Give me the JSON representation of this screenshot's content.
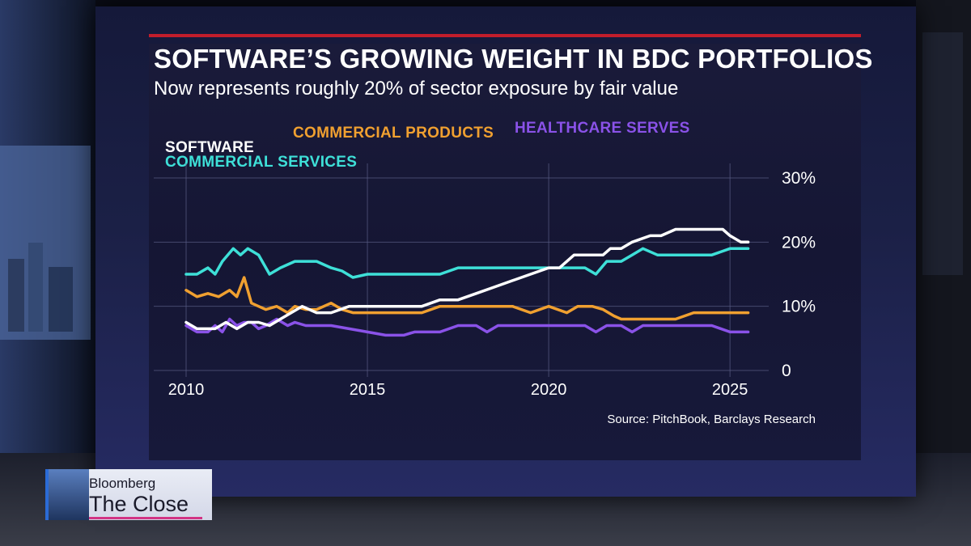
{
  "chart_data": {
    "type": "line",
    "title": "SOFTWARE’S GROWING WEIGHT IN BDC PORTFOLIOS",
    "subtitle": "Now represents roughly 20% of sector exposure by fair value",
    "x_ticks": [
      "2010",
      "2015",
      "2020",
      "2025"
    ],
    "y_ticks": [
      "30%",
      "20%",
      "10%",
      "0"
    ],
    "xlim": [
      2010,
      2025.8
    ],
    "ylim": [
      0,
      30
    ],
    "legend_placement": "top",
    "source": "Source: PitchBook, Barclays Research",
    "series": [
      {
        "name": "SOFTWARE",
        "color": "#ffffff",
        "x": [
          2010.0,
          2010.3,
          2010.8,
          2011.1,
          2011.4,
          2011.7,
          2012.0,
          2012.3,
          2012.6,
          2012.9,
          2013.2,
          2013.6,
          2014.0,
          2014.5,
          2015.0,
          2015.5,
          2016.0,
          2016.5,
          2017.0,
          2017.5,
          2018.0,
          2018.5,
          2019.0,
          2019.5,
          2020.0,
          2020.3,
          2020.7,
          2021.0,
          2021.5,
          2021.7,
          2022.0,
          2022.3,
          2022.8,
          2023.1,
          2023.5,
          2024.0,
          2024.5,
          2024.8,
          2025.0,
          2025.3,
          2025.5
        ],
        "values": [
          7.5,
          6.5,
          6.5,
          7.5,
          6.5,
          7.5,
          7.5,
          7,
          8,
          9,
          10,
          9,
          9,
          10,
          10,
          10,
          10,
          10,
          11,
          11,
          12,
          13,
          14,
          15,
          16,
          16,
          18,
          18,
          18,
          19,
          19,
          20,
          21,
          21,
          22,
          22,
          22,
          22,
          21,
          20,
          20
        ]
      },
      {
        "name": "COMMERCIAL PRODUCTS",
        "color": "#f0a030",
        "x": [
          2010.0,
          2010.3,
          2010.6,
          2010.9,
          2011.2,
          2011.4,
          2011.6,
          2011.8,
          2012.0,
          2012.2,
          2012.5,
          2012.8,
          2013.0,
          2013.3,
          2013.6,
          2014.0,
          2014.3,
          2014.6,
          2015.0,
          2016.0,
          2016.5,
          2017.0,
          2017.5,
          2018.0,
          2019.0,
          2019.5,
          2020.0,
          2020.5,
          2020.8,
          2021.2,
          2021.5,
          2021.8,
          2022.0,
          2022.3,
          2022.6,
          2023.0,
          2023.5,
          2024.0,
          2025.0,
          2025.5
        ],
        "values": [
          12.5,
          11.5,
          12,
          11.5,
          12.5,
          11.5,
          14.5,
          10.5,
          10,
          9.5,
          10,
          9,
          10,
          9.5,
          9.5,
          10.5,
          9.5,
          9,
          9,
          9,
          9,
          10,
          10,
          10,
          10,
          9,
          10,
          9,
          10,
          10,
          9.5,
          8.5,
          8,
          8,
          8,
          8,
          8,
          9,
          9,
          9
        ]
      },
      {
        "name": "HEALTHCARE SERVES",
        "color": "#8a52e8",
        "x": [
          2010.0,
          2010.3,
          2010.6,
          2010.8,
          2011.0,
          2011.2,
          2011.4,
          2011.6,
          2011.8,
          2012.0,
          2012.2,
          2012.5,
          2012.8,
          2013.0,
          2013.3,
          2014.0,
          2015.0,
          2015.5,
          2016.0,
          2016.3,
          2016.6,
          2017.0,
          2017.5,
          2018.0,
          2018.3,
          2018.6,
          2019.0,
          2020.0,
          2020.5,
          2021.0,
          2021.3,
          2021.6,
          2022.0,
          2022.3,
          2022.6,
          2023.0,
          2024.0,
          2024.5,
          2025.0,
          2025.5
        ],
        "values": [
          7,
          6,
          6,
          7,
          6,
          8,
          7,
          7.5,
          7.5,
          6.5,
          7,
          8,
          7,
          7.5,
          7,
          7,
          6,
          5.5,
          5.5,
          6,
          6,
          6,
          7,
          7,
          6,
          7,
          7,
          7,
          7,
          7,
          6,
          7,
          7,
          6,
          7,
          7,
          7,
          7,
          6,
          6
        ]
      },
      {
        "name": "COMMERCIAL SERVICES",
        "color": "#3ee0d8",
        "x": [
          2010.0,
          2010.3,
          2010.6,
          2010.8,
          2011.0,
          2011.3,
          2011.5,
          2011.7,
          2012.0,
          2012.3,
          2012.6,
          2013.0,
          2013.3,
          2013.6,
          2014.0,
          2014.3,
          2014.6,
          2015.0,
          2015.5,
          2016.0,
          2016.5,
          2017.0,
          2017.5,
          2018.0,
          2019.0,
          2020.0,
          2020.5,
          2021.0,
          2021.3,
          2021.6,
          2022.0,
          2022.3,
          2022.6,
          2023.0,
          2024.0,
          2024.5,
          2025.0,
          2025.5
        ],
        "values": [
          15,
          15,
          16,
          15,
          17,
          19,
          18,
          19,
          18,
          15,
          16,
          17,
          17,
          17,
          16,
          15.5,
          14.5,
          15,
          15,
          15,
          15,
          15,
          16,
          16,
          16,
          16,
          16,
          16,
          15,
          17,
          17,
          18,
          19,
          18,
          18,
          18,
          19,
          19
        ]
      }
    ]
  },
  "lower_third": {
    "brand": "Bloomberg",
    "show": "The Close"
  }
}
